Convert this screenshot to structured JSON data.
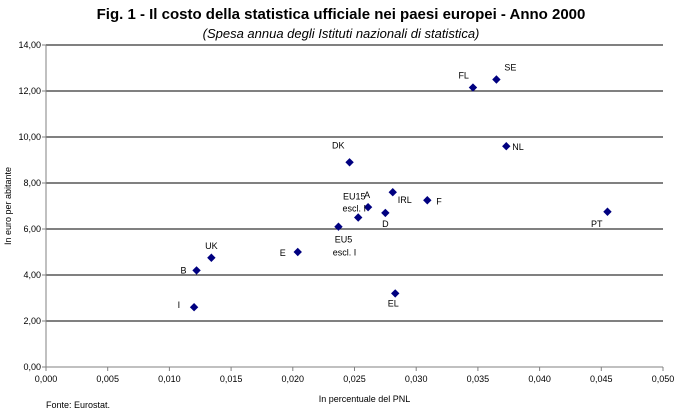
{
  "chart_data": {
    "type": "scatter",
    "title": "Fig. 1 - Il costo della statistica ufficiale nei paesi europei - Anno 2000",
    "subtitle": "(Spesa annua degli Istituti nazionali di statistica)",
    "xlabel": "In percentuale del PNL",
    "ylabel": "In euro per abitante",
    "source": "Fonte: Eurostat.",
    "xlim": [
      0,
      0.05
    ],
    "ylim": [
      0,
      14
    ],
    "x_ticks": [
      "0,000",
      "0,005",
      "0,010",
      "0,015",
      "0,020",
      "0,025",
      "0,030",
      "0,035",
      "0,040",
      "0,045",
      "0,050"
    ],
    "y_ticks": [
      "0,00",
      "2,00",
      "4,00",
      "6,00",
      "8,00",
      "10,00",
      "12,00",
      "14,00"
    ],
    "grid": "horizontal",
    "marker_color": "#000080",
    "points": [
      {
        "label": "SE",
        "x": 0.0365,
        "y": 12.5
      },
      {
        "label": "FL",
        "x": 0.0346,
        "y": 12.15
      },
      {
        "label": "NL",
        "x": 0.0373,
        "y": 9.6
      },
      {
        "label": "DK",
        "x": 0.0246,
        "y": 8.9
      },
      {
        "label": "IRL",
        "x": 0.0281,
        "y": 7.6
      },
      {
        "label": "F",
        "x": 0.0309,
        "y": 7.25
      },
      {
        "label": "A",
        "x": 0.0261,
        "y": 6.95
      },
      {
        "label": "EU15 escl. I",
        "x": 0.0253,
        "y": 6.5
      },
      {
        "label": "D",
        "x": 0.0275,
        "y": 6.7
      },
      {
        "label": "PT",
        "x": 0.0455,
        "y": 6.75
      },
      {
        "label": "EU5 escl. I",
        "x": 0.0237,
        "y": 6.1
      },
      {
        "label": "E",
        "x": 0.0204,
        "y": 5.0
      },
      {
        "label": "UK",
        "x": 0.0134,
        "y": 4.75
      },
      {
        "label": "B",
        "x": 0.0122,
        "y": 4.2
      },
      {
        "label": "EL",
        "x": 0.0283,
        "y": 3.2
      },
      {
        "label": "I",
        "x": 0.012,
        "y": 2.6
      }
    ]
  }
}
